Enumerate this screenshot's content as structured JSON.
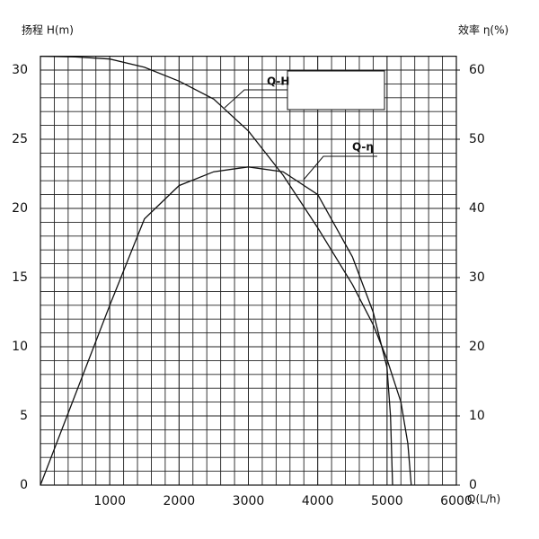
{
  "chart_data": {
    "type": "line",
    "y_label": "扬程 H(m)",
    "y2_label": "效率 η(%)",
    "x_label": "Q(L/h)",
    "xlim": [
      0,
      6000
    ],
    "xticks": [
      1000,
      2000,
      3000,
      4000,
      5000,
      6000
    ],
    "ylim": [
      0,
      31
    ],
    "yticks": [
      0,
      5,
      10,
      15,
      20,
      25,
      30
    ],
    "y2lim": [
      0,
      62
    ],
    "y2ticks": [
      0,
      10,
      20,
      30,
      40,
      50,
      60
    ],
    "grid": true,
    "series": [
      {
        "name": "Q-H",
        "color": "#111111",
        "x": [
          0,
          500,
          1000,
          1500,
          2000,
          2500,
          3000,
          3500,
          4000,
          4500,
          4800,
          5000,
          5200,
          5300,
          5350
        ],
        "values": [
          31,
          30.95,
          30.8,
          30.2,
          29.2,
          27.9,
          25.6,
          22.4,
          18.6,
          14.5,
          11.6,
          9.1,
          6.0,
          3,
          0
        ]
      },
      {
        "name": "Q-η",
        "color": "#111111",
        "axis": "y2",
        "x": [
          0,
          500,
          1000,
          1500,
          2000,
          2500,
          3000,
          3500,
          4000,
          4500,
          4800,
          5000,
          5050,
          5080
        ],
        "values": [
          0,
          13,
          26,
          38.5,
          43.3,
          45.3,
          46,
          45.3,
          42,
          33,
          25,
          17,
          10,
          0
        ]
      }
    ]
  }
}
